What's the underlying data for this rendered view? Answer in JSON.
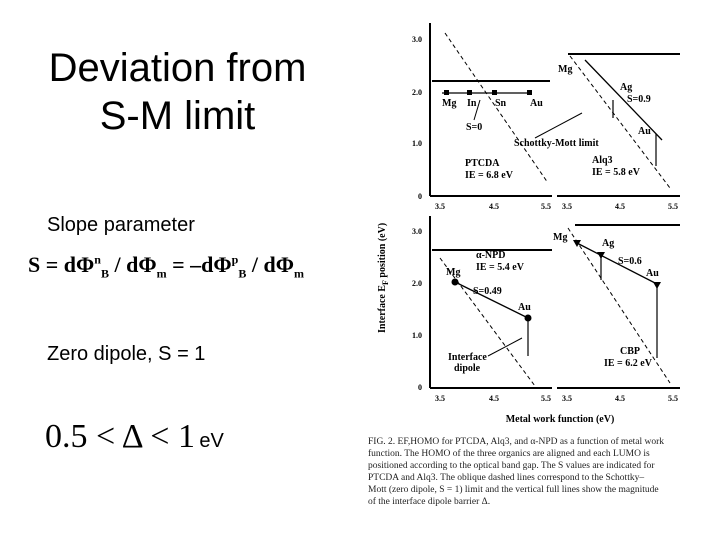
{
  "slide": {
    "title_line1": "Deviation from",
    "title_line2": "S-M limit",
    "slope_label": "Slope parameter",
    "formula": {
      "s": "S",
      "eq": " = d",
      "phi": "Φ",
      "b": "B",
      "n": "n",
      "p": "p",
      "slash": " / d",
      "m": "m",
      "eq_neg": " = –d"
    },
    "zero_dipole": "Zero dipole, S = 1",
    "delta": {
      "math": "0.5 < Δ < 1",
      "unit": "eV"
    }
  },
  "figure": {
    "y_axis_title": "Interface E",
    "y_axis_sub": "F",
    "y_axis_title2": " position (eV)",
    "x_axis_title": "Metal work function (eV)",
    "y_ticks": [
      "3.0",
      "2.0",
      "1.0",
      "0"
    ],
    "x_ticks": [
      "3.5",
      "4.5",
      "5.5"
    ],
    "panels": {
      "ptcda": {
        "name": "PTCDA",
        "ie": "IE = 6.8 eV",
        "metals": [
          "Mg",
          "In",
          "Sn",
          "Au"
        ],
        "s": "S=0"
      },
      "alq3": {
        "name": "Alq3",
        "ie": "IE = 5.8 eV",
        "metals": [
          "Mg",
          "Ag",
          "Au"
        ],
        "s": "S=0.9"
      },
      "npd": {
        "name": "α-NPD",
        "ie": "IE = 5.4 eV",
        "metals": [
          "Mg",
          "Au"
        ],
        "s": "S=0.49"
      },
      "cbp": {
        "name": "CBP",
        "ie": "IE = 6.2 eV",
        "metals": [
          "Mg",
          "Ag",
          "Au"
        ],
        "s": "S=0.6"
      }
    },
    "annotations": {
      "schottky_mott": "Schottky-Mott limit",
      "interface_dipole_1": "Interface",
      "interface_dipole_2": "dipole"
    }
  },
  "caption": {
    "lines": [
      "FIG. 2. EF,HOMO for PTCDA, Alq3, and α-NPD as a function of metal work",
      "function. The HOMO of the three organics are aligned and each LUMO is",
      "positioned according to the optical band gap. The S values are indicated for",
      "PTCDA and Alq3. The oblique dashed lines correspond to the Schottky–",
      "Mott (zero dipole, S = 1) limit and the vertical full lines show the magnitude",
      "of the interface dipole barrier Δ."
    ]
  }
}
